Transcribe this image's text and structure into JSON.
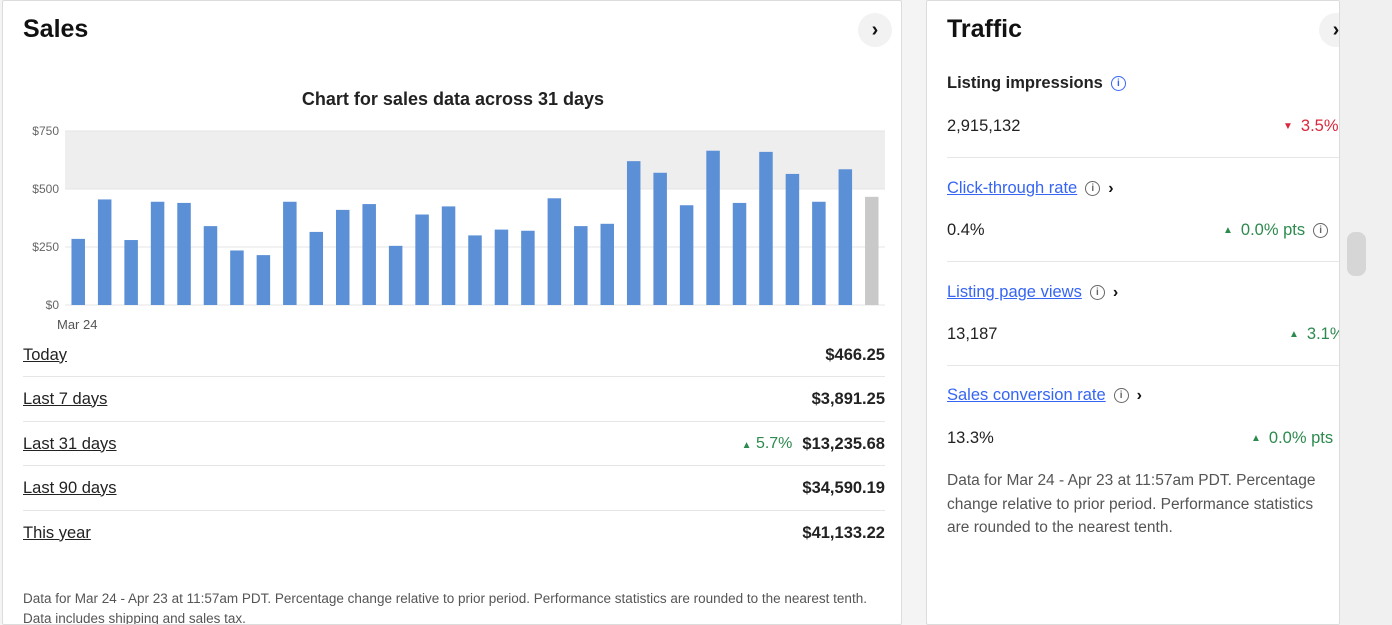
{
  "sales": {
    "title": "Sales",
    "rows": [
      {
        "label": "Today",
        "amount": "$466.25",
        "change": ""
      },
      {
        "label": "Last 7 days",
        "amount": "$3,891.25",
        "change": ""
      },
      {
        "label": "Last 31 days",
        "amount": "$13,235.68",
        "change": "5.7%"
      },
      {
        "label": "Last 90 days",
        "amount": "$34,590.19",
        "change": ""
      },
      {
        "label": "This year",
        "amount": "$41,133.22",
        "change": ""
      }
    ],
    "footnote": "Data for Mar 24 - Apr 23 at 11:57am PDT. Percentage change relative to prior period. Performance statistics are rounded to the nearest tenth. Data includes shipping and sales tax."
  },
  "chart_data": {
    "type": "bar",
    "title": "Chart for sales data across 31 days",
    "xlabel": "",
    "ylabel": "",
    "ylim": [
      0,
      750
    ],
    "yticks": [
      "$0",
      "$250",
      "$500",
      "$750"
    ],
    "categories_first_label": "Mar 24",
    "values": [
      285,
      455,
      280,
      445,
      440,
      340,
      235,
      215,
      445,
      315,
      410,
      435,
      255,
      390,
      425,
      300,
      325,
      320,
      460,
      340,
      350,
      620,
      570,
      430,
      665,
      440,
      660,
      565,
      445,
      585
    ],
    "today_value": 466.25,
    "colors": {
      "bar": "#5b8fd6",
      "today": "#c9c9c9",
      "band": "#eeeeee"
    }
  },
  "traffic": {
    "title": "Traffic",
    "metrics": [
      {
        "label": "Listing impressions",
        "value": "2,915,132",
        "change": "3.5%",
        "direction": "down"
      },
      {
        "label": "Click-through rate",
        "value": "0.4%",
        "change": "0.0% pts",
        "direction": "up"
      },
      {
        "label": "Listing page views",
        "value": "13,187",
        "change": "3.1%",
        "direction": "up"
      },
      {
        "label": "Sales conversion rate",
        "value": "13.3%",
        "change": "0.0% pts",
        "direction": "up"
      }
    ],
    "footnote": "Data for Mar 24 - Apr 23 at 11:57am PDT. Percentage change relative to prior period. Performance statistics are rounded to the nearest tenth."
  },
  "icons": {
    "chevron": "chevron-right-icon",
    "info": "info-icon",
    "up": "triangle-up-icon",
    "down": "triangle-down-icon"
  }
}
